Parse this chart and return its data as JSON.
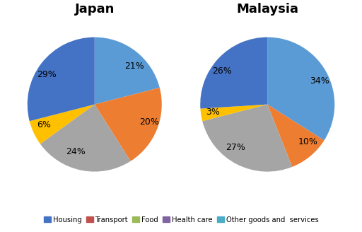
{
  "japan_values": [
    21,
    20,
    24,
    6,
    29
  ],
  "malaysia_values": [
    34,
    10,
    27,
    3,
    26
  ],
  "pie_colors": [
    "#5B9BD5",
    "#ED7D31",
    "#A5A5A5",
    "#FFC000",
    "#4472C4"
  ],
  "legend_colors": [
    "#4472C4",
    "#C0504D",
    "#9BBB59",
    "#8064A2",
    "#4BACC6"
  ],
  "labels": [
    "Housing",
    "Transport",
    "Food",
    "Health care",
    "Other goods and  services"
  ],
  "japan_label_pcts": [
    "21%",
    "20%",
    "24%",
    "6%",
    "29%"
  ],
  "malaysia_label_pcts": [
    "34%",
    "10%",
    "27%",
    "3%",
    "26%"
  ],
  "title_japan": "Japan",
  "title_malaysia": "Malaysia",
  "title_fontsize": 13,
  "pct_fontsize": 9,
  "startangle_japan": 90,
  "startangle_malaysia": 90
}
